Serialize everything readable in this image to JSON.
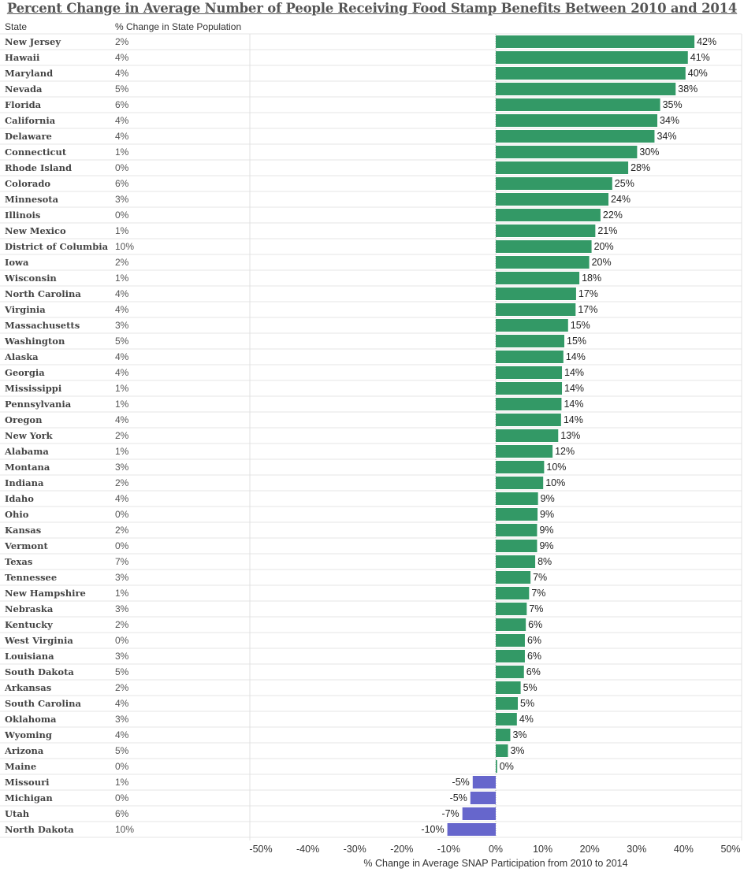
{
  "title": "Percent Change in Average Number of People Receiving Food Stamp Benefits Between  2010 and 2014",
  "headers": {
    "state": "State",
    "population": "% Change in State Population"
  },
  "colors": {
    "positive": "#339966",
    "negative": "#6666cc"
  },
  "chart_data": {
    "type": "bar",
    "orientation": "horizontal",
    "title": "Percent Change in Average Number of People Receiving Food Stamp Benefits Between  2010 and 2014",
    "xlabel": "% Change in Average SNAP Participation from 2010 to 2014",
    "ylabel": "State",
    "xlim": [
      -50,
      50
    ],
    "xticks": [
      "-50%",
      "-40%",
      "-30%",
      "-20%",
      "-10%",
      "0%",
      "10%",
      "20%",
      "30%",
      "40%",
      "50%"
    ],
    "categories": [
      "New Jersey",
      "Hawaii",
      "Maryland",
      "Nevada",
      "Florida",
      "California",
      "Delaware",
      "Connecticut",
      "Rhode Island",
      "Colorado",
      "Minnesota",
      "Illinois",
      "New Mexico",
      "District of Columbia",
      "Iowa",
      "Wisconsin",
      "North Carolina",
      "Virginia",
      "Massachusetts",
      "Washington",
      "Alaska",
      "Georgia",
      "Mississippi",
      "Pennsylvania",
      "Oregon",
      "New York",
      "Alabama",
      "Montana",
      "Indiana",
      "Idaho",
      "Ohio",
      "Kansas",
      "Vermont",
      "Texas",
      "Tennessee",
      "New Hampshire",
      "Nebraska",
      "Kentucky",
      "West Virginia",
      "Louisiana",
      "South Dakota",
      "Arkansas",
      "South Carolina",
      "Oklahoma",
      "Wyoming",
      "Arizona",
      "Maine",
      "Missouri",
      "Michigan",
      "Utah",
      "North Dakota"
    ],
    "population_change": [
      "2%",
      "4%",
      "4%",
      "5%",
      "6%",
      "4%",
      "4%",
      "1%",
      "0%",
      "6%",
      "3%",
      "0%",
      "1%",
      "10%",
      "2%",
      "1%",
      "4%",
      "4%",
      "3%",
      "5%",
      "4%",
      "4%",
      "1%",
      "1%",
      "4%",
      "2%",
      "1%",
      "3%",
      "2%",
      "4%",
      "0%",
      "2%",
      "0%",
      "7%",
      "3%",
      "1%",
      "3%",
      "2%",
      "0%",
      "3%",
      "5%",
      "2%",
      "4%",
      "3%",
      "4%",
      "5%",
      "0%",
      "1%",
      "0%",
      "6%",
      "10%"
    ],
    "values": [
      42.3,
      40.9,
      40.4,
      38.3,
      35.0,
      34.4,
      33.8,
      30.1,
      28.2,
      24.8,
      24.0,
      22.3,
      21.2,
      20.4,
      19.9,
      17.8,
      17.1,
      17.0,
      15.4,
      14.6,
      14.4,
      14.1,
      14.1,
      14.0,
      13.9,
      13.3,
      12.1,
      10.3,
      10.1,
      9.0,
      8.9,
      8.8,
      8.8,
      8.4,
      7.4,
      7.1,
      6.6,
      6.4,
      6.2,
      6.2,
      6.0,
      5.3,
      4.7,
      4.5,
      3.1,
      2.6,
      0.3,
      -4.9,
      -5.4,
      -7.1,
      -10.3
    ],
    "labels": [
      "42%",
      "41%",
      "40%",
      "38%",
      "35%",
      "34%",
      "34%",
      "30%",
      "28%",
      "25%",
      "24%",
      "22%",
      "21%",
      "20%",
      "20%",
      "18%",
      "17%",
      "17%",
      "15%",
      "15%",
      "14%",
      "14%",
      "14%",
      "14%",
      "14%",
      "13%",
      "12%",
      "10%",
      "10%",
      "9%",
      "9%",
      "9%",
      "9%",
      "8%",
      "7%",
      "7%",
      "7%",
      "6%",
      "6%",
      "6%",
      "6%",
      "5%",
      "5%",
      "4%",
      "3%",
      "3%",
      "0%",
      "-5%",
      "-5%",
      "-7%",
      "-10%"
    ]
  }
}
